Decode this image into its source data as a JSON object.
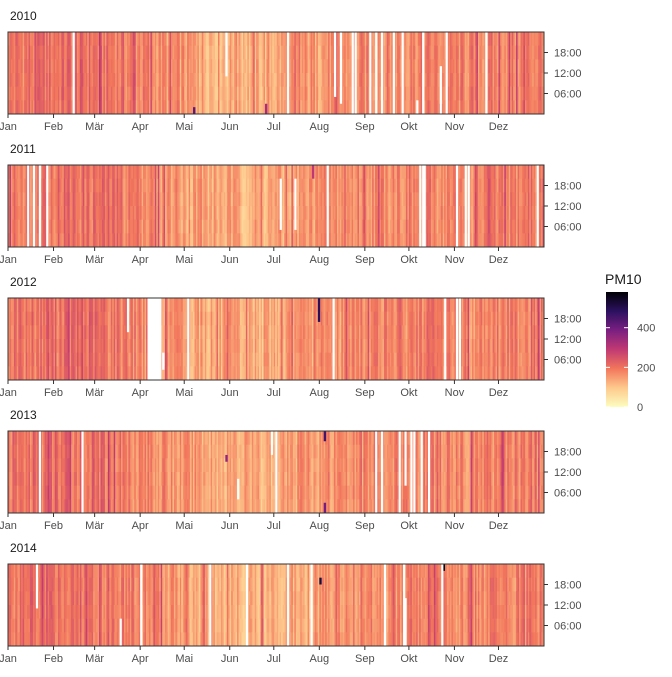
{
  "chart_data": {
    "type": "heatmap",
    "variable": "PM10",
    "x_ticks": [
      "Jan",
      "Feb",
      "Mär",
      "Apr",
      "Mai",
      "Jun",
      "Jul",
      "Aug",
      "Sep",
      "Okt",
      "Nov",
      "Dez"
    ],
    "x_tick_days": [
      0,
      31,
      59,
      90,
      120,
      151,
      181,
      212,
      243,
      273,
      304,
      334
    ],
    "y_ticks": [
      "06:00",
      "12:00",
      "18:00"
    ],
    "y_tick_hours": [
      6,
      12,
      18
    ],
    "y_range": [
      0,
      24
    ],
    "days_in_year": 365,
    "legend": {
      "title": "PM10",
      "ticks": [
        "0",
        "200",
        "400"
      ],
      "tick_values": [
        0,
        200,
        400
      ],
      "range": [
        0,
        580
      ],
      "position": "right"
    },
    "colors": [
      "#fcfdbf",
      "#fec98d",
      "#f2765c",
      "#c13a73",
      "#7a1f81",
      "#2c1160",
      "#000004"
    ],
    "panels": [
      {
        "title": "2010",
        "missing_full_days": [
          44,
          190,
          234,
          236,
          246,
          250,
          254,
          262,
          268,
          282,
          298,
          325
        ],
        "missing_partial": [
          [
            148,
            11,
            24
          ],
          [
            222,
            5,
            24
          ],
          [
            226,
            3,
            24
          ],
          [
            278,
            0,
            4
          ],
          [
            294,
            0,
            14
          ]
        ],
        "hotspots": [
          [
            126,
            0,
            2,
            1.0
          ],
          [
            175,
            0,
            3,
            0.7
          ],
          [
            294,
            0,
            3,
            1.1
          ]
        ]
      },
      {
        "title": "2011",
        "missing_full_days": [
          17,
          21,
          26,
          217,
          282,
          283,
          305,
          311,
          313,
          360
        ],
        "missing_partial": [
          [
            13,
            0,
            24
          ],
          [
            185,
            5,
            20
          ],
          [
            195,
            5,
            20
          ],
          [
            280,
            0,
            24
          ]
        ],
        "hotspots": [
          [
            207,
            20,
            24,
            0.6
          ]
        ]
      },
      {
        "title": "2012",
        "missing_full_days": [
          95,
          96,
          97,
          98,
          99,
          100,
          101,
          102,
          103,
          122,
          221,
          297,
          305
        ],
        "missing_partial": [
          [
            81,
            14,
            24
          ],
          [
            105,
            3,
            8
          ],
          [
            307,
            0,
            24
          ]
        ],
        "hotspots": [
          [
            211,
            17,
            24,
            1.2
          ]
        ]
      },
      {
        "title": "2013",
        "missing_full_days": [
          21,
          50,
          182,
          250,
          254,
          274,
          276,
          281,
          286
        ],
        "missing_partial": [
          [
            156,
            4,
            10
          ],
          [
            179,
            17,
            24
          ],
          [
            266,
            0,
            24
          ],
          [
            270,
            8,
            24
          ]
        ],
        "hotspots": [
          [
            215,
            0,
            3,
            0.9
          ],
          [
            215,
            21,
            24,
            1.1
          ],
          [
            148,
            15,
            17,
            0.8
          ]
        ]
      },
      {
        "title": "2014",
        "missing_full_days": [
          90,
          137,
          162,
          190,
          206,
          256,
          269,
          295
        ],
        "missing_partial": [
          [
            19,
            11,
            24
          ],
          [
            76,
            0,
            8
          ],
          [
            256,
            0,
            20
          ],
          [
            270,
            0,
            14
          ]
        ],
        "hotspots": [
          [
            212,
            18,
            20,
            1.3
          ],
          [
            296,
            22,
            24,
            2.6
          ]
        ]
      }
    ]
  }
}
